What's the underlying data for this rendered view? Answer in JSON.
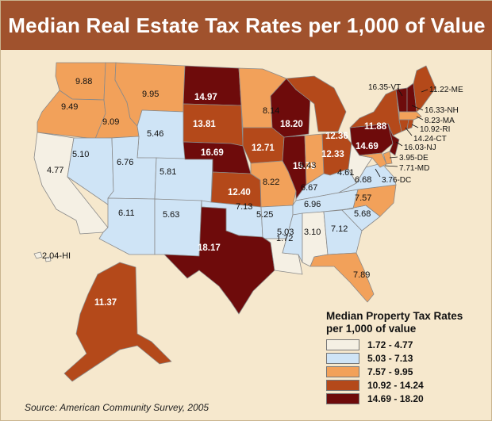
{
  "title": "Median Real Estate Tax Rates per 1,000 of Value",
  "colors": {
    "c1": "#f5f0e4",
    "c2": "#cfe4f6",
    "c3": "#f2a15a",
    "c4": "#b4491a",
    "c5": "#6e0b0b",
    "border": "#8a8a8a"
  },
  "legend": {
    "title_line1": "Median Property Tax Rates",
    "title_line2": "per 1,000 of value",
    "ranges": [
      "1.72 - 4.77",
      "5.03 - 7.13",
      "7.57 - 9.95",
      "10.92 - 14.24",
      "14.69 - 18.20"
    ]
  },
  "source": "Source: American Community Survey, 2005",
  "states": {
    "WA": "9.88",
    "OR": "9.49",
    "CA": "4.77",
    "ID": "9.09",
    "NV": "5.10",
    "MT": "9.95",
    "WY": "5.46",
    "UT": "6.76",
    "CO": "5.81",
    "AZ": "6.11",
    "NM": "5.63",
    "ND": "14.97",
    "SD": "13.81",
    "NE": "16.69",
    "KS": "12.40",
    "OK": "7.13",
    "TX": "18.17",
    "MN": "8.14",
    "IA": "12.71",
    "MO": "8.22",
    "AR": "5.25",
    "LA": "1.72",
    "WI": "18.20",
    "IL": "15.79",
    "MI": "12.36",
    "IN": "9.43",
    "OH": "12.33",
    "KY": "6.67",
    "TN": "6.96",
    "MS": "5.03",
    "AL": "3.10",
    "GA": "7.12",
    "FL": "7.89",
    "SC": "5.68",
    "NC": "7.57",
    "VA": "6.68",
    "WV": "4.61",
    "PA": "14.69",
    "NY": "11.88",
    "ME": "11.22-ME",
    "AK": "11.37",
    "HI": "2.04-HI",
    "VT": "16.35-VT",
    "NH": "16.33-NH",
    "MA": "8.23-MA",
    "RI": "10.92-RI",
    "CT": "14.24-CT",
    "NJ": "16.03-NJ",
    "DE": "3.95-DE",
    "MD": "7.71-MD",
    "DC": "3.76-DC"
  }
}
